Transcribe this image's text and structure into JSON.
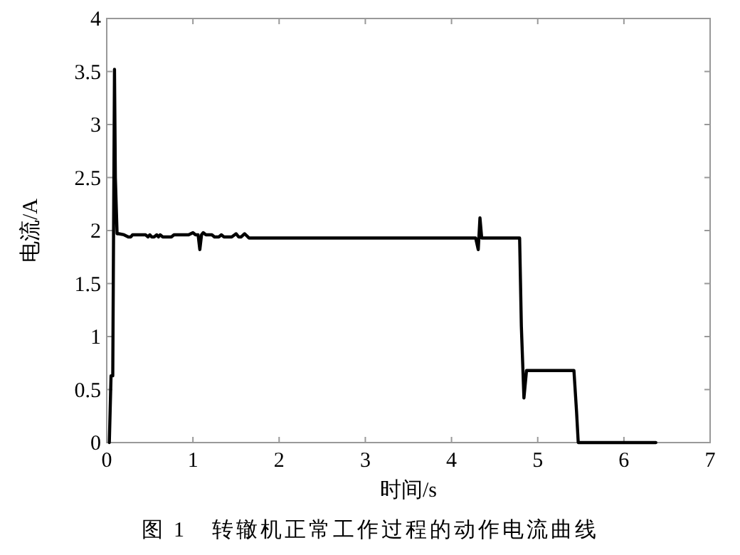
{
  "chart_data": {
    "type": "line",
    "xlabel": "时间/s",
    "ylabel": "电流/A",
    "annotations": [
      "图 1   转辙机正常工作过程的动作电流曲线"
    ],
    "xlim": [
      0,
      7
    ],
    "xticks": [
      0,
      1,
      2,
      3,
      4,
      5,
      6,
      7
    ],
    "ylim": [
      0,
      4
    ],
    "yticks": [
      0,
      0.5,
      1,
      1.5,
      2,
      2.5,
      3,
      3.5,
      4
    ],
    "grid": false,
    "marker": "none",
    "line_style": "solid",
    "series": [
      {
        "color": "#000000",
        "x": [
          0.03,
          0.05,
          0.07,
          0.09,
          0.1,
          0.12,
          0.14,
          0.2,
          0.25,
          0.28,
          0.3,
          0.45,
          0.48,
          0.5,
          0.52,
          0.55,
          0.58,
          0.6,
          0.62,
          0.65,
          0.7,
          0.75,
          0.78,
          0.85,
          0.95,
          1.0,
          1.03,
          1.06,
          1.08,
          1.1,
          1.12,
          1.15,
          1.22,
          1.25,
          1.3,
          1.33,
          1.36,
          1.45,
          1.5,
          1.53,
          1.56,
          1.6,
          1.65,
          1.7,
          2.5,
          3.5,
          4.28,
          4.31,
          4.33,
          4.35,
          4.37,
          4.4,
          4.79,
          4.81,
          4.84,
          4.87,
          5.0,
          5.42,
          5.45,
          5.47,
          6.0,
          6.37
        ],
        "values": [
          0,
          0.63,
          0.63,
          3.52,
          2.5,
          1.97,
          1.97,
          1.96,
          1.94,
          1.94,
          1.96,
          1.96,
          1.94,
          1.96,
          1.94,
          1.94,
          1.96,
          1.94,
          1.96,
          1.94,
          1.94,
          1.94,
          1.96,
          1.96,
          1.96,
          1.98,
          1.96,
          1.96,
          1.82,
          1.96,
          1.98,
          1.96,
          1.96,
          1.94,
          1.94,
          1.96,
          1.94,
          1.94,
          1.97,
          1.94,
          1.94,
          1.97,
          1.93,
          1.93,
          1.93,
          1.93,
          1.93,
          1.82,
          2.12,
          1.93,
          1.93,
          1.93,
          1.93,
          1.1,
          0.42,
          0.68,
          0.68,
          0.68,
          0.3,
          0,
          0,
          0
        ]
      }
    ]
  }
}
